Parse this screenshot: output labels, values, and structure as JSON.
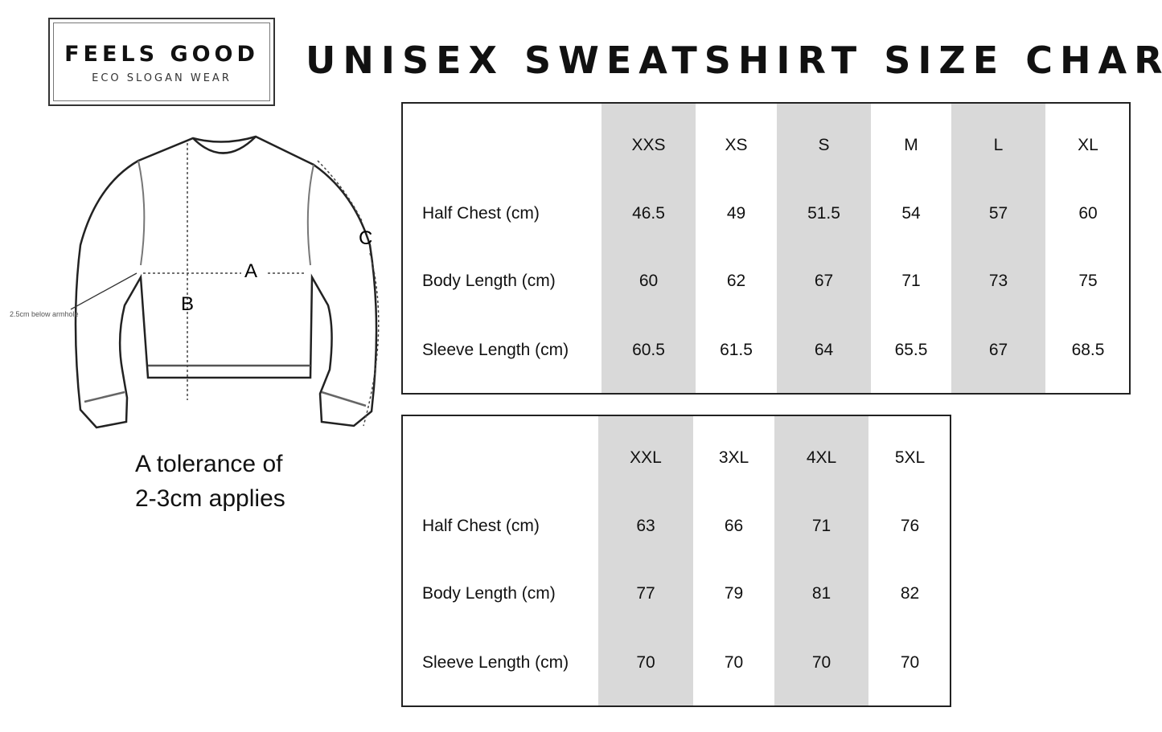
{
  "logo": {
    "brand": "FEELS GOOD",
    "tagline": "ECO SLOGAN WEAR"
  },
  "title": "UNISEX SWEATSHIRT SIZE CHART",
  "diagram": {
    "labels": {
      "a": "A",
      "b": "B",
      "c": "C"
    },
    "note": "2.5cm below armhole"
  },
  "tolerance": {
    "line1": "A tolerance of",
    "line2": "2-3cm applies"
  },
  "table1": {
    "sizes": [
      "XXS",
      "XS",
      "S",
      "M",
      "L",
      "XL"
    ],
    "rows": [
      {
        "label": "Half Chest (cm)",
        "values": [
          "46.5",
          "49",
          "51.5",
          "54",
          "57",
          "60"
        ]
      },
      {
        "label": "Body Length (cm)",
        "values": [
          "60",
          "62",
          "67",
          "71",
          "73",
          "75"
        ]
      },
      {
        "label": "Sleeve Length (cm)",
        "values": [
          "60.5",
          "61.5",
          "64",
          "65.5",
          "67",
          "68.5"
        ]
      }
    ]
  },
  "table2": {
    "sizes": [
      "XXL",
      "3XL",
      "4XL",
      "5XL"
    ],
    "rows": [
      {
        "label": "Half Chest (cm)",
        "values": [
          "63",
          "66",
          "71",
          "76"
        ]
      },
      {
        "label": "Body Length (cm)",
        "values": [
          "77",
          "79",
          "81",
          "82"
        ]
      },
      {
        "label": "Sleeve Length (cm)",
        "values": [
          "70",
          "70",
          "70",
          "70"
        ]
      }
    ]
  },
  "colors": {
    "shaded_column": "#d9d9d9",
    "border": "#222222"
  }
}
